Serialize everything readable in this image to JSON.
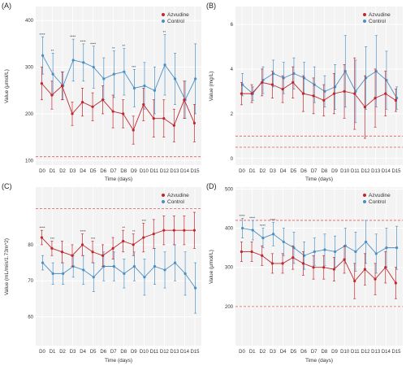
{
  "panels_text": {
    "A": {
      "label": "(A)",
      "ylabel": "Value (μmol/L)",
      "xlabel": "Time (days)"
    },
    "B": {
      "label": "(B)",
      "ylabel": "Value (mg/L)",
      "xlabel": "Time (days)"
    },
    "C": {
      "label": "(C)",
      "ylabel": "Value (mL/min/1.73m^2)",
      "xlabel": "Time (days)"
    },
    "D": {
      "label": "(D)",
      "ylabel": "Value (μmol/L)",
      "xlabel": "Time (days)"
    }
  },
  "legend": {
    "azvudine": "Azvudine",
    "control": "Control"
  },
  "colors": {
    "azvudine": "#c0262d",
    "control": "#4a8fc4",
    "reference": "#e05a5a",
    "panel_bg": "#f3f3f3",
    "grid": "#ffffff"
  },
  "chart_data": [
    {
      "panel": "A",
      "type": "line",
      "x": [
        "D0",
        "D1",
        "D2",
        "D3",
        "D4",
        "D5",
        "D6",
        "D7",
        "D8",
        "D9",
        "D10",
        "D11",
        "D12",
        "D13",
        "D14",
        "D15"
      ],
      "xlabel": "Time (days)",
      "ylabel": "Value (μmol/L)",
      "ylim": [
        90,
        430
      ],
      "yticks": [
        100,
        200,
        300,
        400
      ],
      "reference_lines": [
        108
      ],
      "legend_position": "top-right",
      "series": [
        {
          "name": "Azvudine",
          "values": [
            265,
            240,
            260,
            200,
            225,
            215,
            230,
            205,
            200,
            165,
            220,
            190,
            190,
            175,
            230,
            180
          ],
          "errors": [
            35,
            30,
            30,
            25,
            30,
            30,
            30,
            35,
            30,
            30,
            35,
            40,
            40,
            35,
            40,
            40
          ]
        },
        {
          "name": "Control",
          "values": [
            325,
            285,
            260,
            315,
            310,
            300,
            275,
            285,
            290,
            255,
            260,
            250,
            305,
            275,
            230,
            275
          ],
          "errors": [
            40,
            45,
            30,
            45,
            40,
            45,
            45,
            50,
            50,
            40,
            50,
            50,
            65,
            55,
            40,
            75
          ]
        }
      ],
      "significance": [
        "****",
        "**",
        "",
        "****",
        "****",
        "****",
        "",
        "**",
        "**",
        "***",
        "",
        "",
        "**",
        "",
        "",
        ""
      ]
    },
    {
      "panel": "B",
      "type": "line",
      "x": [
        "D0",
        "D1",
        "D2",
        "D3",
        "D4",
        "D5",
        "D6",
        "D7",
        "D8",
        "D9",
        "D10",
        "D11",
        "D12",
        "D13",
        "D14",
        "D15"
      ],
      "xlabel": "Time (days)",
      "ylabel": "Value (mg/L)",
      "ylim": [
        -0.3,
        6.8
      ],
      "yticks": [
        0,
        2,
        4,
        6
      ],
      "reference_lines": [
        1.0,
        0.5
      ],
      "legend_position": "top-right",
      "series": [
        {
          "name": "Azvudine",
          "values": [
            2.9,
            2.9,
            3.4,
            3.3,
            3.1,
            3.4,
            2.9,
            2.8,
            2.6,
            2.9,
            3.0,
            2.9,
            2.3,
            2.7,
            2.9,
            2.6
          ],
          "errors": [
            0.5,
            0.4,
            0.6,
            0.6,
            0.6,
            0.7,
            0.8,
            0.8,
            0.7,
            0.9,
            1.2,
            1.6,
            1.4,
            1.3,
            1.0,
            0.5
          ]
        },
        {
          "name": "Control",
          "values": [
            3.3,
            2.9,
            3.5,
            3.8,
            3.6,
            3.8,
            3.6,
            3.3,
            3.0,
            3.2,
            3.9,
            3.0,
            3.6,
            3.9,
            3.5,
            2.7
          ],
          "errors": [
            0.5,
            0.3,
            0.6,
            0.6,
            0.7,
            0.7,
            0.7,
            0.8,
            0.7,
            1.0,
            1.6,
            1.4,
            1.4,
            1.6,
            1.3,
            0.5
          ]
        }
      ]
    },
    {
      "panel": "C",
      "type": "line",
      "x": [
        "D0",
        "D1",
        "D2",
        "D3",
        "D4",
        "D5",
        "D6",
        "D7",
        "D8",
        "D9",
        "D10",
        "D11",
        "D12",
        "D13",
        "D14",
        "D15"
      ],
      "xlabel": "Time (days)",
      "ylabel": "Value (mL/min/1.73m^2)",
      "ylim": [
        52,
        96
      ],
      "yticks": [
        60,
        70,
        80
      ],
      "reference_lines": [
        90
      ],
      "legend_position": "top-right",
      "series": [
        {
          "name": "Azvudine",
          "values": [
            82,
            79,
            78,
            77,
            80,
            78,
            77,
            79,
            81,
            80,
            82,
            83,
            84,
            84,
            84,
            84
          ],
          "errors": [
            2,
            2,
            3,
            3,
            3,
            3,
            3,
            3,
            3,
            3,
            4,
            4,
            4,
            4,
            4,
            5
          ]
        },
        {
          "name": "Control",
          "values": [
            75,
            72,
            72,
            74,
            73,
            71,
            74,
            74,
            72,
            74,
            71,
            74,
            73,
            75,
            72,
            68
          ],
          "errors": [
            2,
            3,
            3,
            3,
            4,
            4,
            4,
            4,
            4,
            4,
            5,
            5,
            5,
            5,
            6,
            7
          ]
        }
      ],
      "significance": [
        "****",
        "***",
        "",
        "",
        "****",
        "***",
        "",
        "",
        "**",
        "**",
        "***",
        "",
        "",
        "",
        "",
        ""
      ]
    },
    {
      "panel": "D",
      "type": "line",
      "x": [
        "D0",
        "D1",
        "D2",
        "D3",
        "D4",
        "D5",
        "D6",
        "D7",
        "D8",
        "D9",
        "D10",
        "D11",
        "D12",
        "D13",
        "D14",
        "D15"
      ],
      "xlabel": "Time (days)",
      "ylabel": "Value (μmol/L)",
      "ylim": [
        100,
        505
      ],
      "yticks": [
        200,
        300,
        400,
        500
      ],
      "reference_lines": [
        420,
        200
      ],
      "legend_position": "top-right",
      "series": [
        {
          "name": "Azvudine",
          "values": [
            340,
            340,
            330,
            310,
            310,
            325,
            310,
            300,
            300,
            295,
            320,
            265,
            295,
            270,
            300,
            260
          ],
          "errors": [
            25,
            25,
            25,
            25,
            25,
            30,
            30,
            30,
            30,
            30,
            35,
            45,
            40,
            40,
            40,
            40
          ]
        },
        {
          "name": "Control",
          "values": [
            400,
            395,
            375,
            385,
            365,
            350,
            330,
            340,
            345,
            340,
            355,
            340,
            365,
            335,
            350,
            350
          ],
          "errors": [
            25,
            25,
            25,
            30,
            35,
            40,
            35,
            35,
            40,
            40,
            45,
            50,
            55,
            50,
            50,
            55
          ]
        }
      ],
      "significance": [
        "****",
        "****",
        "****",
        "****",
        "",
        "",
        "",
        "",
        "",
        "",
        "",
        "",
        "",
        "",
        "",
        ""
      ]
    }
  ]
}
